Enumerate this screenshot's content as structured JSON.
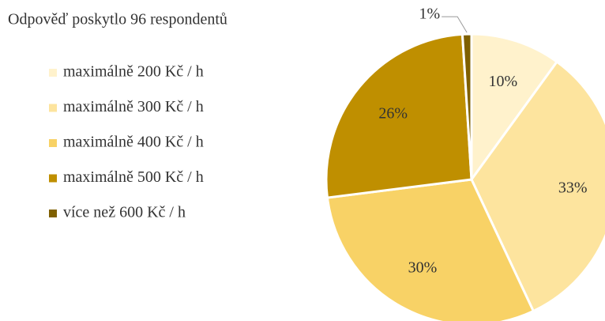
{
  "chart_data": {
    "type": "pie",
    "title": "Odpověď poskytlo 96 respondentů",
    "categories": [
      "maximálně 200 Kč / h",
      "maximálně 300 Kč / h",
      "maximálně 400 Kč / h",
      "maximálně 500 Kč / h",
      "více než 600 Kč / h"
    ],
    "values": [
      10,
      33,
      30,
      26,
      1
    ],
    "value_labels": [
      "10%",
      "33%",
      "30%",
      "26%",
      "1%"
    ],
    "colors": [
      "#fff2cc",
      "#fde49e",
      "#f8d266",
      "#bf8f00",
      "#7f6000"
    ],
    "legend": "left"
  }
}
